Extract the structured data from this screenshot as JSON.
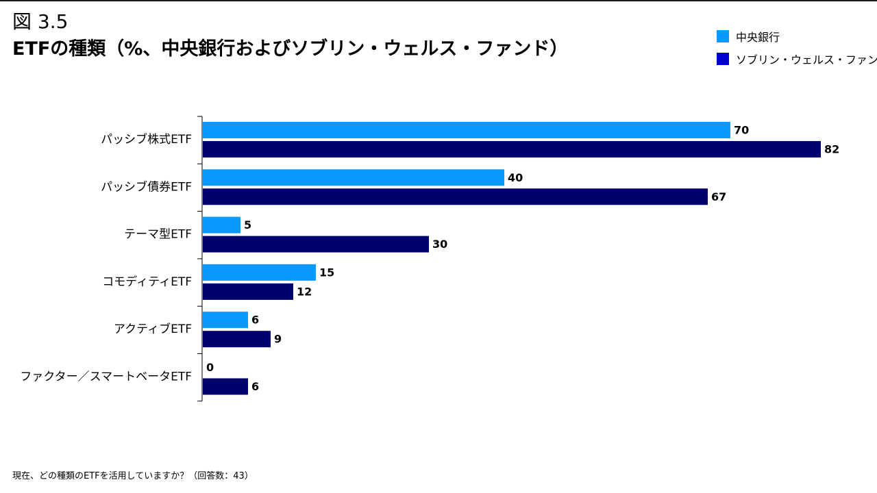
{
  "figure_label": "図 3.5",
  "title": "ETFの種類（%、中央銀行およびソブリン・ウェルス・ファンド）",
  "footnote": "現在、どの種類のETFを活用していますか？（回答数：43）",
  "colors": {
    "central_bank": "#0A99FF",
    "swf": "#00006E",
    "swf_legend": "#0000D4"
  },
  "chart_data": {
    "type": "bar",
    "orientation": "horizontal",
    "categories": [
      "パッシブ株式ETF",
      "パッシブ債券ETF",
      "テーマ型ETF",
      "コモディティETF",
      "アクティブETF",
      "ファクター／スマートベータETF"
    ],
    "series": [
      {
        "name": "中央銀行",
        "values": [
          70,
          40,
          5,
          15,
          6,
          0
        ]
      },
      {
        "name": "ソブリン・ウェルス・ファンド",
        "values": [
          82,
          67,
          30,
          12,
          9,
          6
        ]
      }
    ],
    "xlim": [
      0,
      100
    ],
    "legend_position": "top-right",
    "data_labels": true,
    "grid": false
  }
}
